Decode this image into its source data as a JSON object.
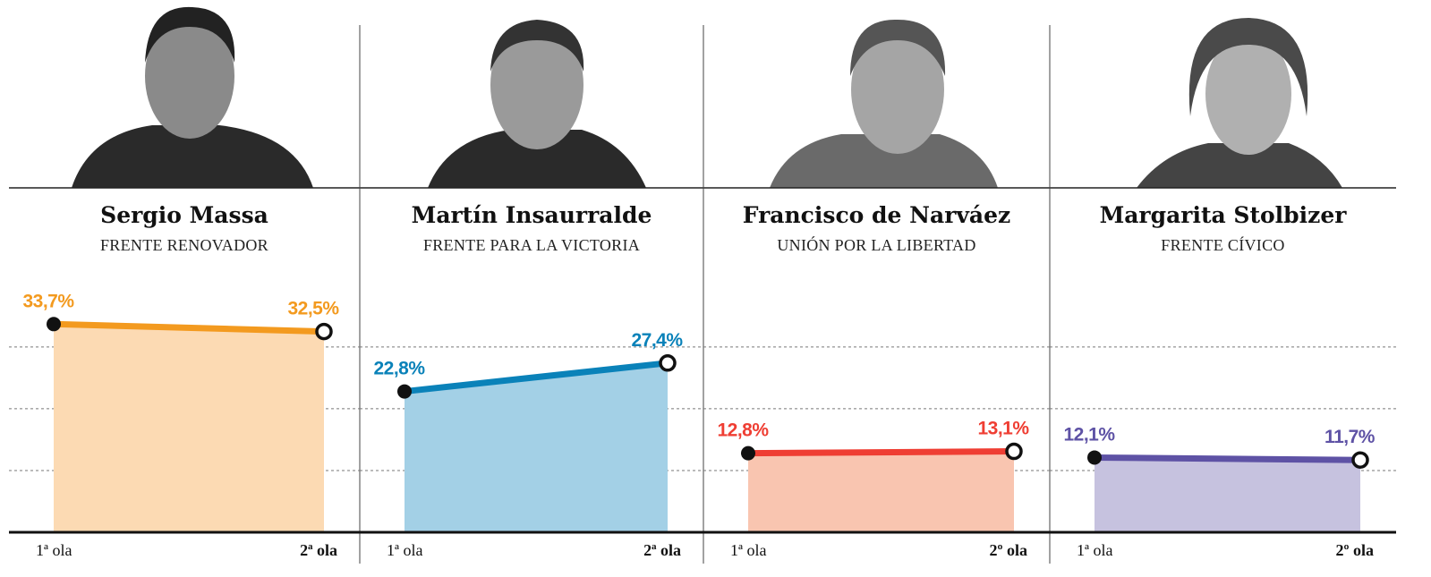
{
  "chart_data": [
    {
      "type": "line",
      "title": "Sergio Massa",
      "subtitle": "FRENTE RENOVADOR",
      "categories": [
        "1ª ola",
        "2ª ola"
      ],
      "values": [
        33.7,
        32.5
      ],
      "value_labels": [
        "33,7%",
        "32,5%"
      ],
      "color": "#f39a1f",
      "area_color": "#fcdab3",
      "ylim": [
        0,
        42
      ],
      "yticks": [
        10,
        20,
        30
      ],
      "grid": true
    },
    {
      "type": "line",
      "title": "Martín Insaurralde",
      "subtitle": "FRENTE PARA LA VICTORIA",
      "categories": [
        "1ª ola",
        "2ª ola"
      ],
      "values": [
        22.8,
        27.4
      ],
      "value_labels": [
        "22,8%",
        "27,4%"
      ],
      "color": "#0a82b9",
      "area_color": "#a3d0e6",
      "ylim": [
        0,
        42
      ],
      "yticks": [
        10,
        20,
        30
      ],
      "grid": true
    },
    {
      "type": "line",
      "title": "Francisco de Narváez",
      "subtitle": "UNIÓN POR LA LIBERTAD",
      "categories": [
        "1ª ola",
        "2º ola"
      ],
      "values": [
        12.8,
        13.1
      ],
      "value_labels": [
        "12,8%",
        "13,1%"
      ],
      "color": "#ef3e33",
      "area_color": "#f9c5b0",
      "ylim": [
        0,
        42
      ],
      "yticks": [
        10,
        20,
        30
      ],
      "grid": true
    },
    {
      "type": "line",
      "title": "Margarita Stolbizer",
      "subtitle": "FRENTE CÍVICO",
      "categories": [
        "1ª ola",
        "2º ola"
      ],
      "values": [
        12.1,
        11.7
      ],
      "value_labels": [
        "12,1%",
        "11,7%"
      ],
      "color": "#5e52a5",
      "area_color": "#c6c2df",
      "ylim": [
        0,
        42
      ],
      "yticks": [
        10,
        20,
        30
      ],
      "grid": true
    }
  ]
}
